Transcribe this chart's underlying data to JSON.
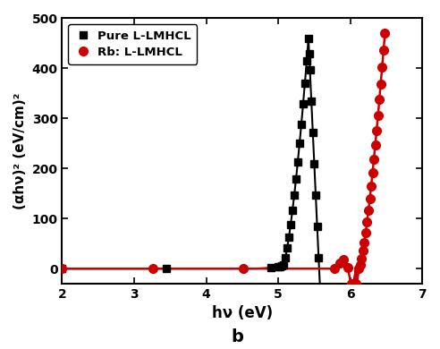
{
  "title": "",
  "xlabel": "hν (eV)",
  "ylabel": "(αhν)² (eV/cm)²",
  "xlim": [
    2,
    7
  ],
  "ylim": [
    -30,
    500
  ],
  "yticks": [
    0,
    100,
    200,
    300,
    400,
    500
  ],
  "xticks": [
    2,
    3,
    4,
    5,
    6,
    7
  ],
  "label_b": "b",
  "legend1": "Pure L-LMHCL",
  "legend2": "Rb: L-LMHCL",
  "color1": "#000000",
  "color2": "#cc0000",
  "bg_color": "#ffffff"
}
